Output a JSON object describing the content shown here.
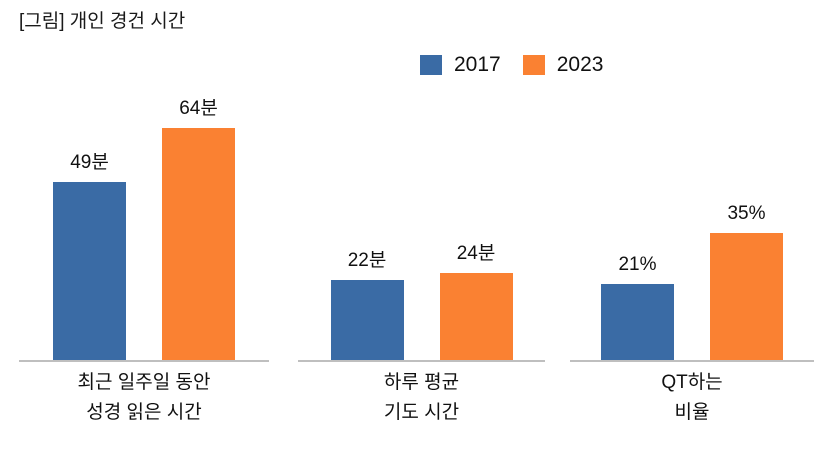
{
  "title": "[그림] 개인 경건 시간",
  "legend": {
    "items": [
      {
        "label": "2017",
        "color": "#3A6BA5"
      },
      {
        "label": "2023",
        "color": "#FA8132"
      }
    ]
  },
  "chart_data": {
    "type": "bar",
    "title": "[그림] 개인 경건 시간",
    "grid": false,
    "legend_position": "top",
    "axis_color": "#BFBFBF",
    "categories": [
      "최근 일주일 동안 성경 읽은 시간",
      "하루 평균 기도 시간",
      "QT하는 비율"
    ],
    "series": [
      {
        "name": "2017",
        "color": "#3A6BA5",
        "values": [
          49,
          22,
          21
        ]
      },
      {
        "name": "2023",
        "color": "#FA8132",
        "values": [
          64,
          24,
          35
        ]
      }
    ],
    "groups": [
      {
        "category_lines": [
          "최근 일주일 동안",
          "성경 읽은 시간"
        ],
        "bars": [
          {
            "series": "2017",
            "value": 49,
            "label": "49분"
          },
          {
            "series": "2023",
            "value": 64,
            "label": "64분"
          }
        ]
      },
      {
        "category_lines": [
          "하루 평균",
          "기도 시간"
        ],
        "bars": [
          {
            "series": "2017",
            "value": 22,
            "label": "22분"
          },
          {
            "series": "2023",
            "value": 24,
            "label": "24분"
          }
        ]
      },
      {
        "category_lines": [
          "QT하는",
          "비율"
        ],
        "bars": [
          {
            "series": "2017",
            "value": 21,
            "label": "21%"
          },
          {
            "series": "2023",
            "value": 35,
            "label": "35%"
          }
        ]
      }
    ]
  }
}
